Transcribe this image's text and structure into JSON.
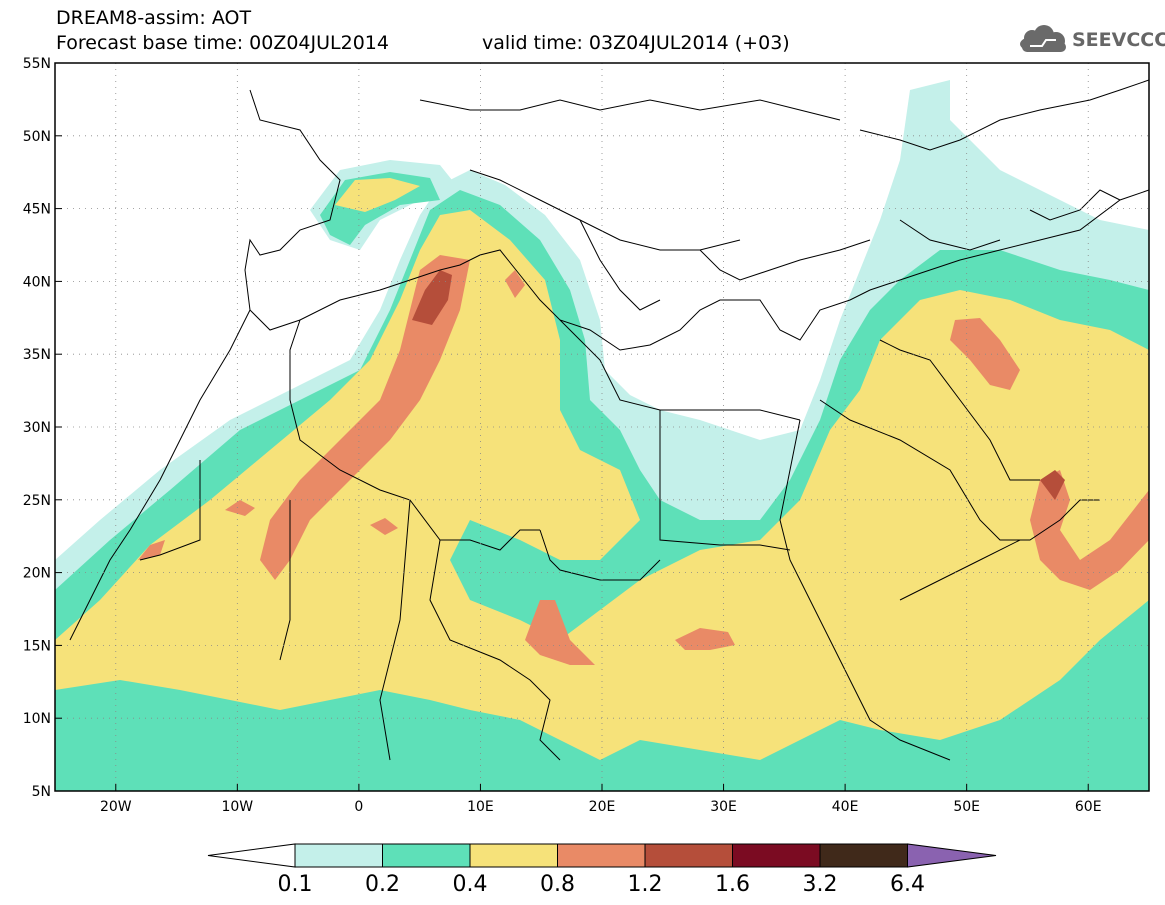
{
  "title": {
    "line1": "DREAM8-assim: AOT",
    "line2": "Forecast base time: 00Z04JUL2014",
    "valid": "valid time: 03Z04JUL2014 (+03)"
  },
  "logo": {
    "text": "SEEVCCC",
    "icon": "cloud-icon"
  },
  "axes": {
    "lat_labels": [
      "55N",
      "50N",
      "45N",
      "40N",
      "35N",
      "30N",
      "25N",
      "20N",
      "15N",
      "10N",
      "5N"
    ],
    "lon_labels": [
      "20W",
      "10W",
      "0",
      "10E",
      "20E",
      "30E",
      "40E",
      "50E",
      "60E"
    ],
    "lon_range": [
      -25,
      65
    ],
    "lat_range": [
      5,
      55
    ]
  },
  "colorbar": {
    "labels": [
      "0.1",
      "0.2",
      "0.4",
      "0.8",
      "1.2",
      "1.6",
      "3.2",
      "6.4"
    ],
    "colors": [
      "#c4f0ea",
      "#5ee0b8",
      "#f6e27a",
      "#e98a66",
      "#b54e3a",
      "#7b0b22",
      "#40291a"
    ],
    "below_color": "#ffffff",
    "above_color": "#8a62b0"
  }
}
